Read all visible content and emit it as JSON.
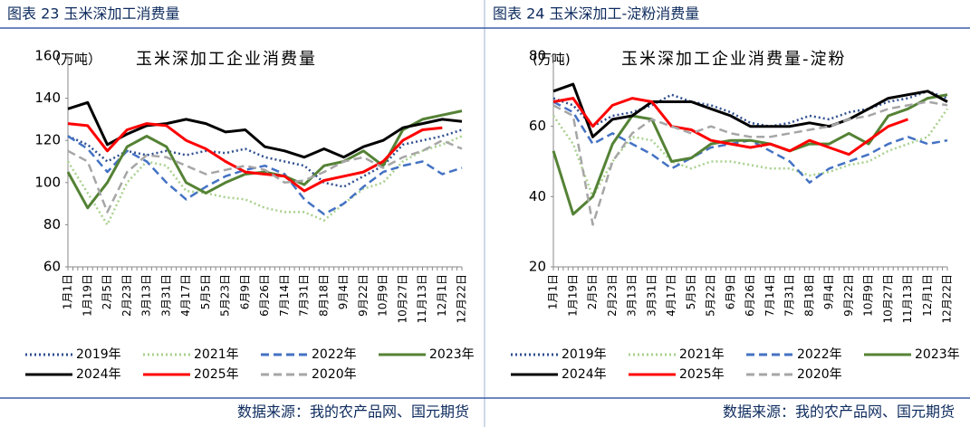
{
  "chart_data": [
    {
      "type": "line",
      "title": "图表 23 玉米深加工消费量",
      "subtitle": "玉米深加工企业消费量",
      "ylabel": "（万吨）",
      "source": "数据来源：我的农产品网、国元期货",
      "categories": [
        "1月1日",
        "1月19日",
        "2月5日",
        "2月23日",
        "3月13日",
        "3月31日",
        "4月17日",
        "5月5日",
        "5月23日",
        "6月9日",
        "6月26日",
        "7月14日",
        "7月31日",
        "8月18日",
        "9月4日",
        "9月22日",
        "10月9日",
        "10月27日",
        "11月13日",
        "12月1日",
        "12月22日"
      ],
      "ylim": [
        60,
        160
      ],
      "yticks": [
        60,
        80,
        100,
        120,
        140,
        160
      ],
      "series": [
        {
          "name": "2019年",
          "color": "#2f4f8f",
          "style": "dotted",
          "values": [
            122,
            118,
            110,
            115,
            113,
            115,
            113,
            115,
            114,
            116,
            112,
            110,
            108,
            100,
            98,
            103,
            108,
            118,
            120,
            122,
            125
          ]
        },
        {
          "name": "2021年",
          "color": "#a9d18e",
          "style": "dotted",
          "values": [
            110,
            95,
            80,
            100,
            110,
            108,
            96,
            95,
            93,
            92,
            88,
            86,
            86,
            82,
            90,
            97,
            100,
            110,
            115,
            118,
            122
          ]
        },
        {
          "name": "2022年",
          "color": "#4472c4",
          "style": "dashed",
          "values": [
            122,
            116,
            105,
            115,
            110,
            100,
            92,
            98,
            103,
            106,
            108,
            104,
            92,
            85,
            90,
            98,
            105,
            108,
            110,
            104,
            107
          ]
        },
        {
          "name": "2023年",
          "color": "#548235",
          "style": "solid",
          "values": [
            105,
            88,
            100,
            117,
            122,
            117,
            100,
            95,
            100,
            104,
            105,
            103,
            99,
            108,
            110,
            115,
            108,
            125,
            130,
            132,
            134
          ]
        },
        {
          "name": "2024年",
          "color": "#000000",
          "style": "solid",
          "values": [
            135,
            138,
            118,
            123,
            127,
            128,
            130,
            128,
            124,
            125,
            117,
            115,
            112,
            116,
            112,
            117,
            120,
            126,
            128,
            130,
            129
          ]
        },
        {
          "name": "2025年",
          "color": "#ff0000",
          "style": "solid",
          "values": [
            128,
            127,
            115,
            125,
            128,
            127,
            120,
            116,
            110,
            105,
            104,
            103,
            96,
            101,
            103,
            105,
            110,
            120,
            125,
            126,
            null
          ]
        },
        {
          "name": "2020年",
          "color": "#a6a6a6",
          "style": "dashed",
          "values": [
            115,
            110,
            86,
            105,
            113,
            112,
            108,
            104,
            106,
            108,
            106,
            100,
            101,
            105,
            110,
            112,
            107,
            112,
            115,
            120,
            116
          ]
        }
      ]
    },
    {
      "type": "line",
      "title": "图表 24 玉米深加工-淀粉消费量",
      "subtitle": "玉米深加工企业消费量-淀粉",
      "ylabel": "(万吨)",
      "source": "数据来源：我的农产品网、国元期货",
      "categories": [
        "1月1日",
        "1月19日",
        "2月5日",
        "2月23日",
        "3月13日",
        "3月31日",
        "4月17日",
        "5月5日",
        "5月22日",
        "6月9日",
        "6月26日",
        "7月14日",
        "7月31日",
        "8月18日",
        "9月4日",
        "9月22日",
        "10月9日",
        "10月27日",
        "11月13日",
        "12月1日",
        "12月22日"
      ],
      "ylim": [
        20,
        80
      ],
      "yticks": [
        20,
        40,
        60,
        80
      ],
      "series": [
        {
          "name": "2019年",
          "color": "#2f4f8f",
          "style": "dotted",
          "values": [
            68,
            66,
            60,
            63,
            64,
            66,
            69,
            67,
            66,
            64,
            61,
            60,
            61,
            63,
            62,
            64,
            65,
            67,
            68,
            70,
            68
          ]
        },
        {
          "name": "2021年",
          "color": "#a9d18e",
          "style": "dotted",
          "values": [
            63,
            55,
            40,
            50,
            57,
            56,
            50,
            48,
            50,
            50,
            49,
            48,
            48,
            46,
            47,
            49,
            50,
            53,
            55,
            57,
            65
          ]
        },
        {
          "name": "2022年",
          "color": "#4472c4",
          "style": "dashed",
          "values": [
            67,
            64,
            55,
            58,
            55,
            52,
            48,
            51,
            54,
            55,
            56,
            53,
            50,
            44,
            48,
            50,
            52,
            55,
            57,
            55,
            56
          ]
        },
        {
          "name": "2023年",
          "color": "#548235",
          "style": "solid",
          "values": [
            53,
            35,
            40,
            55,
            63,
            62,
            50,
            51,
            55,
            56,
            56,
            55,
            53,
            55,
            55,
            58,
            55,
            63,
            65,
            68,
            69
          ]
        },
        {
          "name": "2024年",
          "color": "#000000",
          "style": "solid",
          "values": [
            70,
            72,
            57,
            62,
            63,
            67,
            67,
            67,
            65,
            63,
            60,
            60,
            60,
            61,
            60,
            62,
            65,
            68,
            69,
            70,
            67
          ]
        },
        {
          "name": "2025年",
          "color": "#ff0000",
          "style": "solid",
          "values": [
            67,
            68,
            60,
            66,
            68,
            67,
            60,
            59,
            56,
            55,
            54,
            55,
            53,
            56,
            54,
            52,
            56,
            60,
            62,
            null,
            null
          ]
        },
        {
          "name": "2020年",
          "color": "#a6a6a6",
          "style": "dashed",
          "values": [
            66,
            63,
            32,
            50,
            58,
            62,
            60,
            58,
            60,
            58,
            57,
            57,
            58,
            59,
            60,
            62,
            63,
            65,
            66,
            67,
            66
          ]
        }
      ]
    }
  ]
}
